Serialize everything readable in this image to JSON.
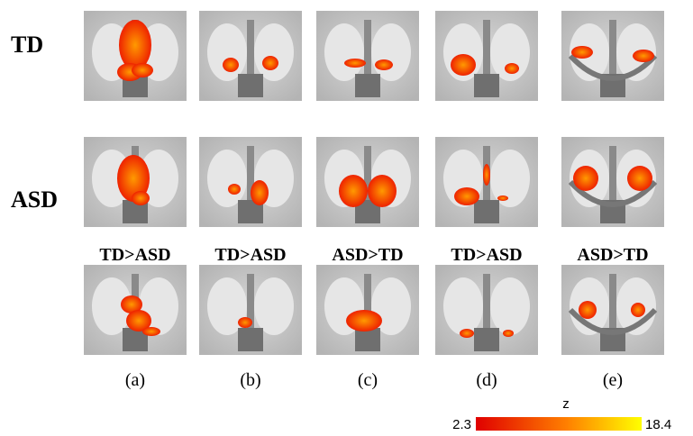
{
  "row_labels": [
    "TD",
    "ASD"
  ],
  "contrast_labels": [
    "TD>ASD",
    "TD>ASD",
    "ASD>TD",
    "TD>ASD",
    "ASD>TD"
  ],
  "panel_labels": [
    "(a)",
    "(b)",
    "(c)",
    "(d)",
    "(e)"
  ],
  "colorbar": {
    "title": "z",
    "min_label": "2.3",
    "max_label": "18.4"
  }
}
